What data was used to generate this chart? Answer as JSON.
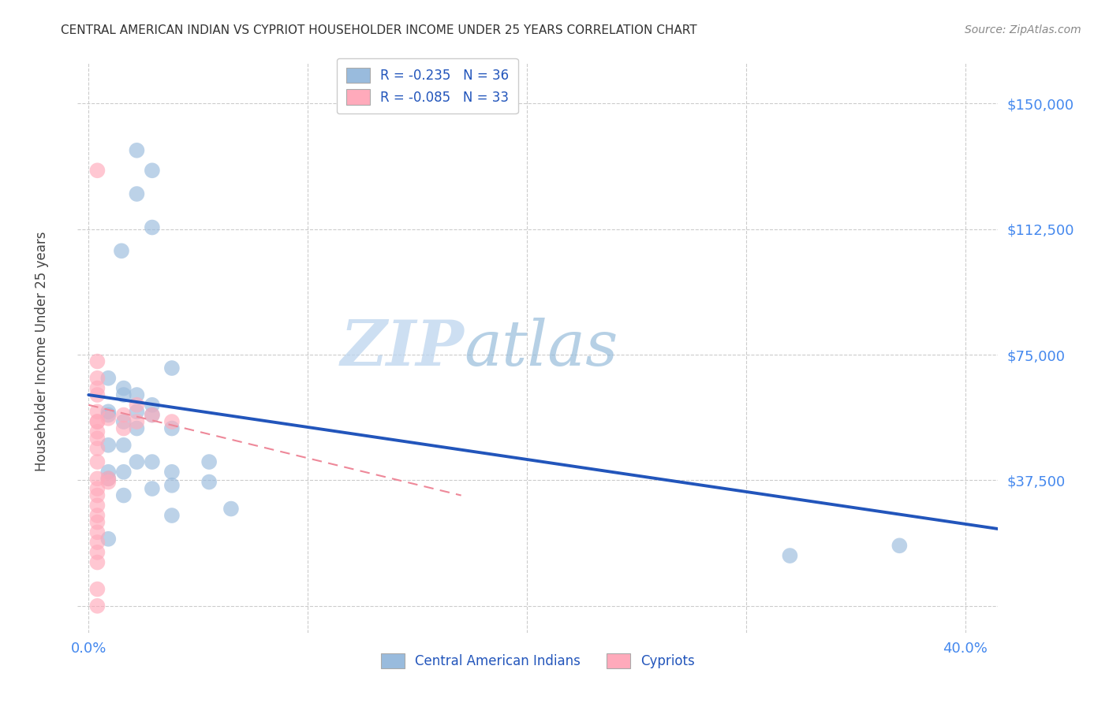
{
  "title": "CENTRAL AMERICAN INDIAN VS CYPRIOT HOUSEHOLDER INCOME UNDER 25 YEARS CORRELATION CHART",
  "source": "Source: ZipAtlas.com",
  "ylabel": "Householder Income Under 25 years",
  "xlabel_ticks": [
    "0.0%",
    "",
    "",
    "",
    "",
    "",
    "",
    "",
    "40.0%"
  ],
  "xlabel_tick_vals": [
    0.0,
    0.05,
    0.1,
    0.15,
    0.2,
    0.25,
    0.3,
    0.35,
    0.4
  ],
  "ytick_labels": [
    "$150,000",
    "$112,500",
    "$75,000",
    "$37,500",
    ""
  ],
  "ytick_vals": [
    150000,
    112500,
    75000,
    37500,
    0
  ],
  "xlim": [
    -0.005,
    0.415
  ],
  "ylim": [
    -8000,
    162000
  ],
  "legend_line1": "R = -0.235   N = 36",
  "legend_line2": "R = -0.085   N = 33",
  "legend_label1": "Central American Indians",
  "legend_label2": "Cypriots",
  "blue_color": "#99BBDD",
  "pink_color": "#FFAABB",
  "blue_line_color": "#2255BB",
  "pink_line_color": "#EE8899",
  "watermark_zip": "ZIP",
  "watermark_atlas": "atlas",
  "title_color": "#333333",
  "axis_label_color": "#444444",
  "ytick_color": "#4488EE",
  "xtick_color": "#4488EE",
  "blue_dots_x": [
    0.022,
    0.029,
    0.022,
    0.029,
    0.015,
    0.009,
    0.016,
    0.022,
    0.038,
    0.009,
    0.016,
    0.022,
    0.029,
    0.038,
    0.016,
    0.029,
    0.009,
    0.022,
    0.029,
    0.038,
    0.055,
    0.055,
    0.038,
    0.029,
    0.009,
    0.016,
    0.065,
    0.32,
    0.37,
    0.009,
    0.016,
    0.009,
    0.016,
    0.038,
    0.009,
    0.022
  ],
  "blue_dots_y": [
    136000,
    130000,
    123000,
    113000,
    106000,
    68000,
    65000,
    63000,
    71000,
    58000,
    55000,
    53000,
    57000,
    53000,
    63000,
    60000,
    57000,
    43000,
    43000,
    40000,
    43000,
    37000,
    36000,
    35000,
    38000,
    33000,
    29000,
    15000,
    18000,
    40000,
    40000,
    48000,
    48000,
    27000,
    20000,
    58000
  ],
  "pink_dots_x": [
    0.004,
    0.004,
    0.004,
    0.004,
    0.004,
    0.004,
    0.004,
    0.004,
    0.004,
    0.004,
    0.004,
    0.004,
    0.004,
    0.004,
    0.004,
    0.009,
    0.009,
    0.009,
    0.016,
    0.022,
    0.016,
    0.022,
    0.029,
    0.038,
    0.004,
    0.004,
    0.004,
    0.004,
    0.004,
    0.004,
    0.004,
    0.004,
    0.004
  ],
  "pink_dots_y": [
    130000,
    73000,
    68000,
    65000,
    63000,
    58000,
    55000,
    55000,
    52000,
    50000,
    47000,
    43000,
    38000,
    35000,
    33000,
    38000,
    37000,
    56000,
    57000,
    60000,
    53000,
    55000,
    57000,
    55000,
    30000,
    27000,
    25000,
    22000,
    19000,
    16000,
    13000,
    5000,
    0
  ],
  "blue_trendline_x": [
    0.0,
    0.415
  ],
  "blue_trendline_y": [
    63000,
    23000
  ],
  "pink_trendline_x": [
    0.0,
    0.17
  ],
  "pink_trendline_y": [
    60000,
    33000
  ],
  "grid_color": "#CCCCCC",
  "background_color": "#FFFFFF"
}
